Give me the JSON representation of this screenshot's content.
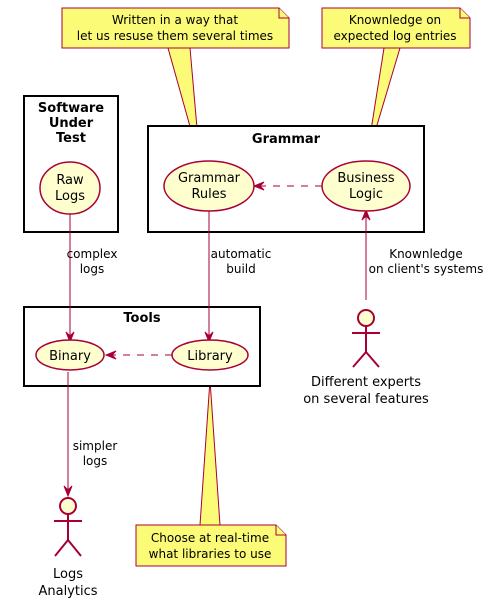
{
  "packages": {
    "sut": {
      "title_lines": [
        "Software",
        "Under",
        "Test"
      ]
    },
    "grammar": {
      "title": "Grammar"
    },
    "tools": {
      "title": "Tools"
    }
  },
  "usecases": {
    "raw_logs": [
      "Raw",
      "Logs"
    ],
    "grammar_rules": [
      "Grammar",
      "Rules"
    ],
    "business_logic": [
      "Business",
      "Logic"
    ],
    "binary": [
      "Binary"
    ],
    "library": [
      "Library"
    ]
  },
  "notes": {
    "reuse": [
      "Written in a way that",
      "let us resuse them several times"
    ],
    "expected": [
      "Knownledge on",
      "expected log entries"
    ],
    "realtime": [
      "Choose at real-time",
      "what libraries to use"
    ]
  },
  "links": {
    "complex": [
      "complex",
      "logs"
    ],
    "automatic": [
      "automatic",
      "build"
    ],
    "knowledge": [
      "Knownledge",
      "on client's systems"
    ],
    "simpler": [
      "simpler",
      "logs"
    ]
  },
  "actors": {
    "experts": [
      "Different experts",
      "on several features"
    ],
    "analytics": [
      "Logs",
      "Analytics"
    ]
  },
  "colors": {
    "usecase_fill": "#FEFECE",
    "note_fill": "#FBFB77",
    "border": "#A80036",
    "package_border": "#000000"
  }
}
